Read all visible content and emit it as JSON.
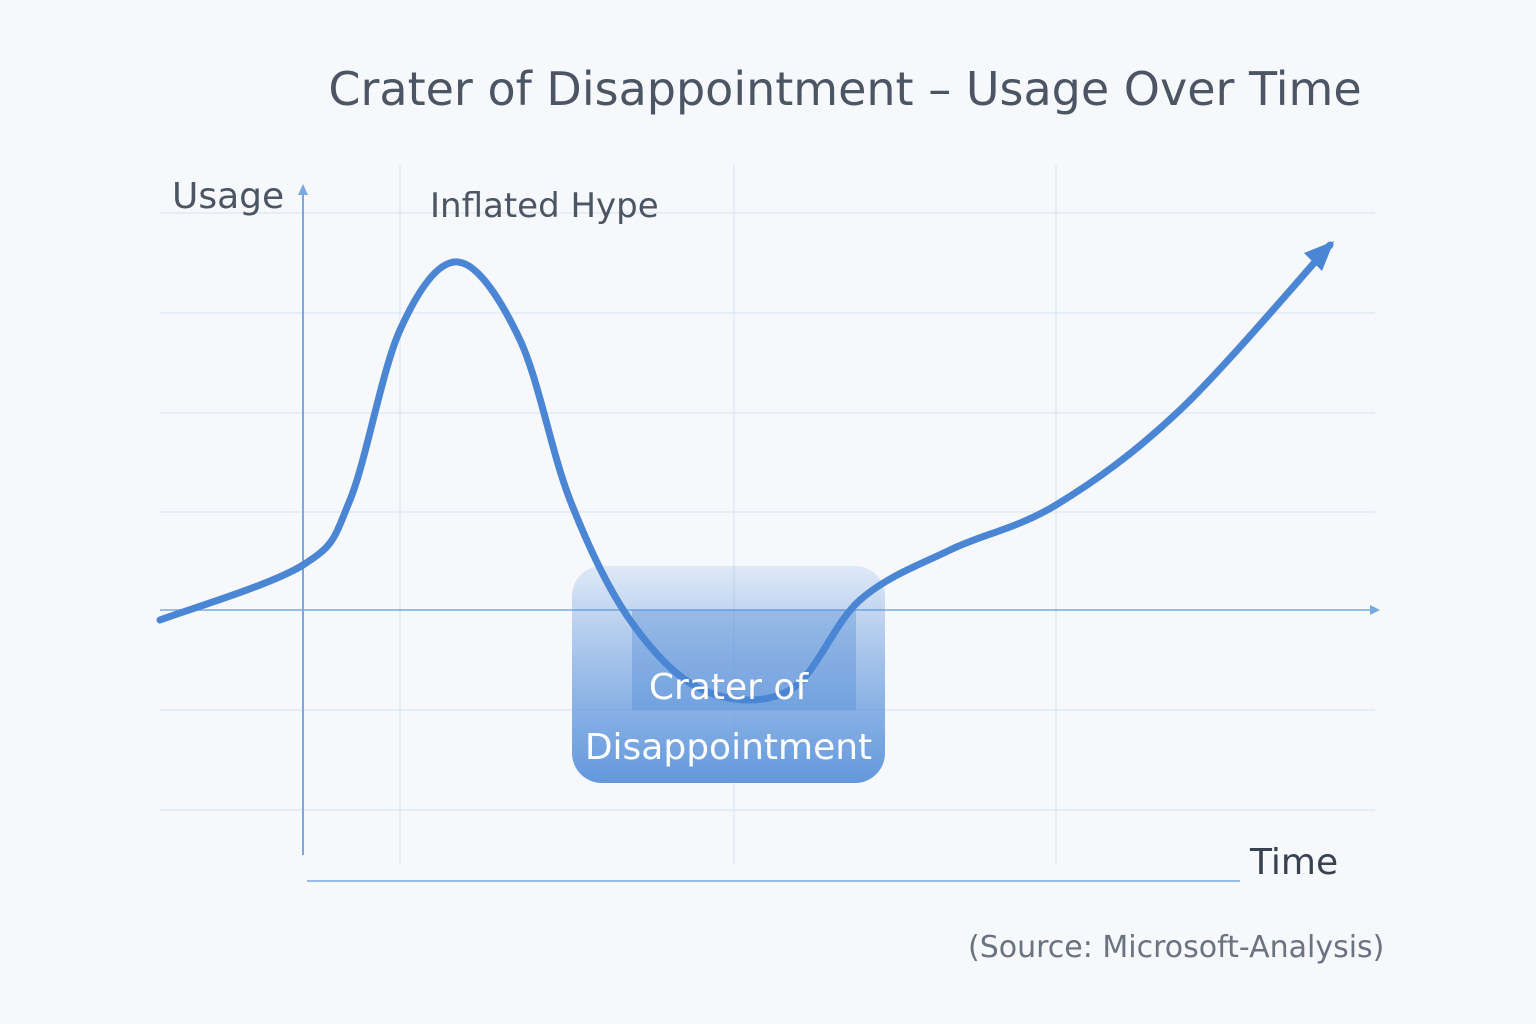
{
  "chart_data": {
    "type": "line",
    "title": "Crater of Disappointment – Usage Over Time",
    "xlabel": "Time",
    "ylabel": "Usage",
    "annotations": [
      "Inflated Hype",
      "Crater of Disappointment"
    ],
    "source": "(Source: Microsoft-Analysis)",
    "grid": true,
    "axis_ticks": "none",
    "series": [
      {
        "x": [
          -1.43,
          0,
          0.47,
          0.97,
          1.55,
          2.17,
          2.67,
          3.27,
          4.0,
          4.87,
          5.57,
          6.47,
          7.53,
          8.77,
          10.27
        ],
        "y": [
          -0.1,
          0.45,
          1.1,
          2.8,
          3.48,
          2.7,
          1.1,
          -0.1,
          -0.8,
          -0.8,
          0.1,
          0.6,
          1.05,
          2.0,
          3.65
        ]
      }
    ],
    "colors": {
      "line": "#4a86d4",
      "grid": "#dbe6f2",
      "axis": "#7aa9e0",
      "crater_box": "#5b93db"
    }
  }
}
